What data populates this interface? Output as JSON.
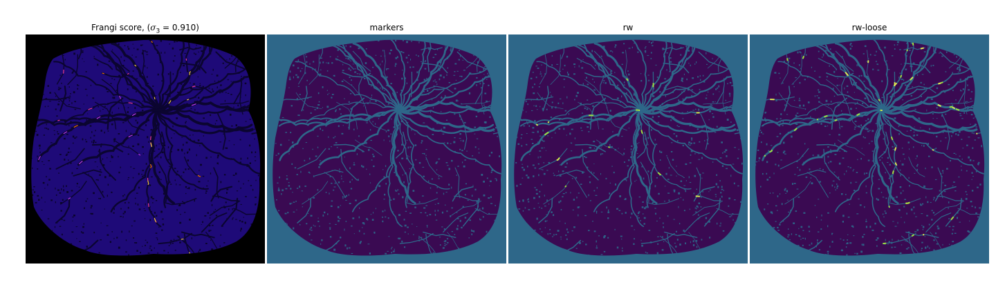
{
  "panels": [
    {
      "title_pre": "Frangi score, (",
      "title_sym": "σ",
      "title_sub": "3",
      "title_post": " = 0.910)",
      "background": "#000000",
      "tissue": "#1e0a78",
      "vessel": "#0b0530",
      "highlights": [
        "#ff7a00",
        "#ffd24d",
        "#ff3fa0",
        "#c83cff"
      ]
    },
    {
      "title": "markers",
      "background": "#2e6789",
      "tissue": "#3a0a52",
      "vessel": "#2e6789",
      "highlights": []
    },
    {
      "title": "rw",
      "background": "#2e6789",
      "tissue": "#3a0a52",
      "vessel": "#2e6789",
      "highlights": [
        "#a8e63c",
        "#e0f048"
      ]
    },
    {
      "title": "rw-loose",
      "background": "#2e6789",
      "tissue": "#3a0a52",
      "vessel": "#2e6789",
      "highlights": [
        "#a8e63c",
        "#e8f050"
      ]
    }
  ]
}
